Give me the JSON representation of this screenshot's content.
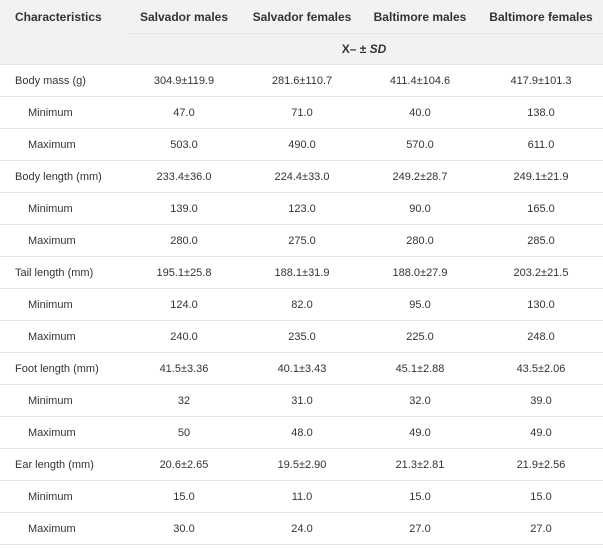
{
  "header": {
    "characteristics": "Characteristics",
    "columns": [
      "Salvador males",
      "Salvador females",
      "Baltimore males",
      "Baltimore females"
    ],
    "stat_label": "X– ± ",
    "stat_label_sd": "SD"
  },
  "rows": [
    {
      "label": "Body mass (g)",
      "values": [
        "304.9±119.9",
        "281.6±110.7",
        "411.4±104.6",
        "417.9±101.3"
      ]
    },
    {
      "label": "Minimum",
      "values": [
        "47.0",
        "71.0",
        "40.0",
        "138.0"
      ]
    },
    {
      "label": "Maximum",
      "values": [
        "503.0",
        "490.0",
        "570.0",
        "611.0"
      ]
    },
    {
      "label": "Body length (mm)",
      "values": [
        "233.4±36.0",
        "224.4±33.0",
        "249.2±28.7",
        "249.1±21.9"
      ]
    },
    {
      "label": "Minimum",
      "values": [
        "139.0",
        "123.0",
        "90.0",
        "165.0"
      ]
    },
    {
      "label": "Maximum",
      "values": [
        "280.0",
        "275.0",
        "280.0",
        "285.0"
      ]
    },
    {
      "label": "Tail length (mm)",
      "values": [
        "195.1±25.8",
        "188.1±31.9",
        "188.0±27.9",
        "203.2±21.5"
      ]
    },
    {
      "label": "Minimum",
      "values": [
        "124.0",
        "82.0",
        "95.0",
        "130.0"
      ]
    },
    {
      "label": "Maximum",
      "values": [
        "240.0",
        "235.0",
        "225.0",
        "248.0"
      ]
    },
    {
      "label": "Foot length (mm)",
      "values": [
        "41.5±3.36",
        "40.1±3.43",
        "45.1±2.88",
        "43.5±2.06"
      ]
    },
    {
      "label": "Minimum",
      "values": [
        "32",
        "31.0",
        "32.0",
        "39.0"
      ]
    },
    {
      "label": "Maximum",
      "values": [
        "50",
        "48.0",
        "49.0",
        "49.0"
      ]
    },
    {
      "label": "Ear length (mm)",
      "values": [
        "20.6±2.65",
        "19.5±2.90",
        "21.3±2.81",
        "21.9±2.56"
      ]
    },
    {
      "label": "Minimum",
      "values": [
        "15.0",
        "11.0",
        "15.0",
        "15.0"
      ]
    },
    {
      "label": "Maximum",
      "values": [
        "30.0",
        "24.0",
        "27.0",
        "27.0"
      ]
    }
  ]
}
